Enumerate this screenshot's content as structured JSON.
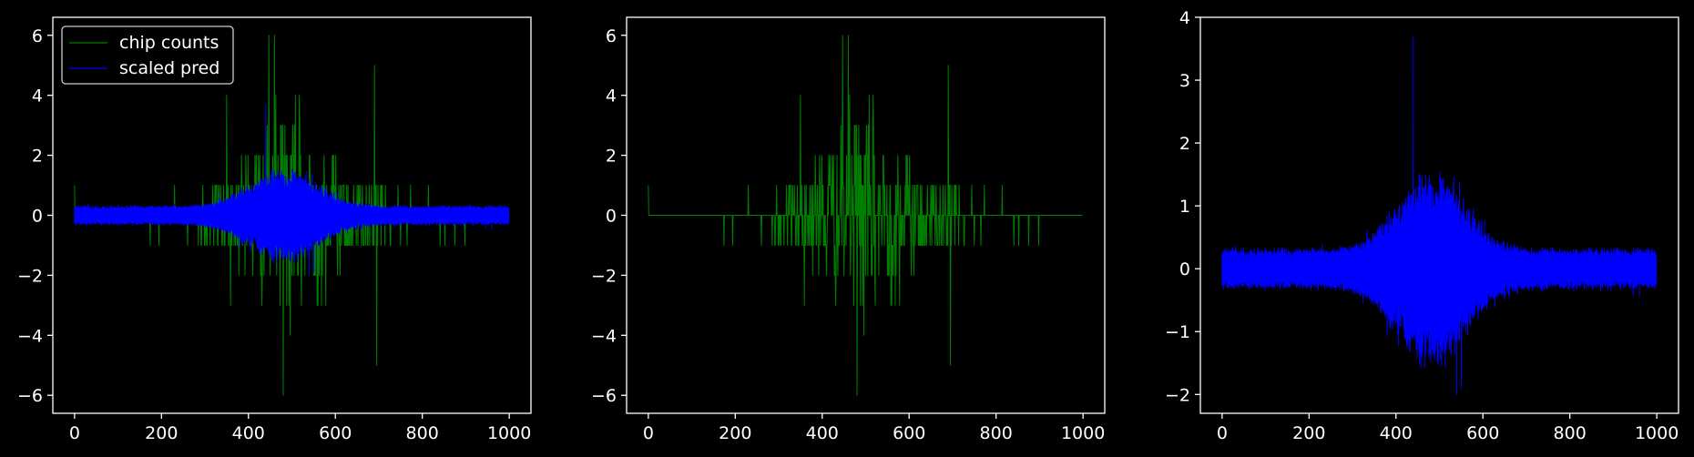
{
  "figure": {
    "background": "#000000",
    "foreground": "#ffffff"
  },
  "chart_data": [
    {
      "type": "line",
      "panel": "left",
      "xlim": [
        -50,
        1050
      ],
      "ylim": [
        -6.6,
        6.6
      ],
      "xticks": [
        0,
        200,
        400,
        600,
        800,
        1000
      ],
      "yticks": [
        -6,
        -4,
        -2,
        0,
        2,
        4,
        6
      ],
      "xtick_labels": [
        "0",
        "200",
        "400",
        "600",
        "800",
        "1000"
      ],
      "ytick_labels": [
        "−6",
        "−4",
        "−2",
        "0",
        "2",
        "4",
        "6"
      ],
      "grid": false,
      "legend": "top-left",
      "series": [
        {
          "name": "chip counts",
          "color": "#008000",
          "kind": "counts",
          "n": 1000,
          "peak_x": 480,
          "max_abs": 6
        },
        {
          "name": "scaled pred",
          "color": "#0000ff",
          "kind": "pred",
          "n": 1000,
          "peak_x": 440,
          "max": 3.7,
          "min": -2.0
        }
      ]
    },
    {
      "type": "line",
      "panel": "middle",
      "xlim": [
        -50,
        1050
      ],
      "ylim": [
        -6.6,
        6.6
      ],
      "xticks": [
        0,
        200,
        400,
        600,
        800,
        1000
      ],
      "yticks": [
        -6,
        -4,
        -2,
        0,
        2,
        4,
        6
      ],
      "xtick_labels": [
        "0",
        "200",
        "400",
        "600",
        "800",
        "1000"
      ],
      "ytick_labels": [
        "−6",
        "−4",
        "−2",
        "0",
        "2",
        "4",
        "6"
      ],
      "grid": false,
      "legend": "none",
      "series": [
        {
          "color": "#008000",
          "kind": "counts",
          "n": 1000,
          "peak_x": 480,
          "max_abs": 6
        }
      ]
    },
    {
      "type": "line",
      "panel": "right",
      "xlim": [
        -50,
        1050
      ],
      "ylim": [
        -2.3,
        4.0
      ],
      "xticks": [
        0,
        200,
        400,
        600,
        800,
        1000
      ],
      "yticks": [
        -2,
        -1,
        0,
        1,
        2,
        3,
        4
      ],
      "xtick_labels": [
        "0",
        "200",
        "400",
        "600",
        "800",
        "1000"
      ],
      "ytick_labels": [
        "−2",
        "−1",
        "0",
        "1",
        "2",
        "3",
        "4"
      ],
      "grid": false,
      "legend": "none",
      "series": [
        {
          "color": "#0000ff",
          "kind": "pred",
          "n": 1000,
          "peak_x": 440,
          "max": 3.7,
          "min": -2.0
        }
      ]
    }
  ]
}
